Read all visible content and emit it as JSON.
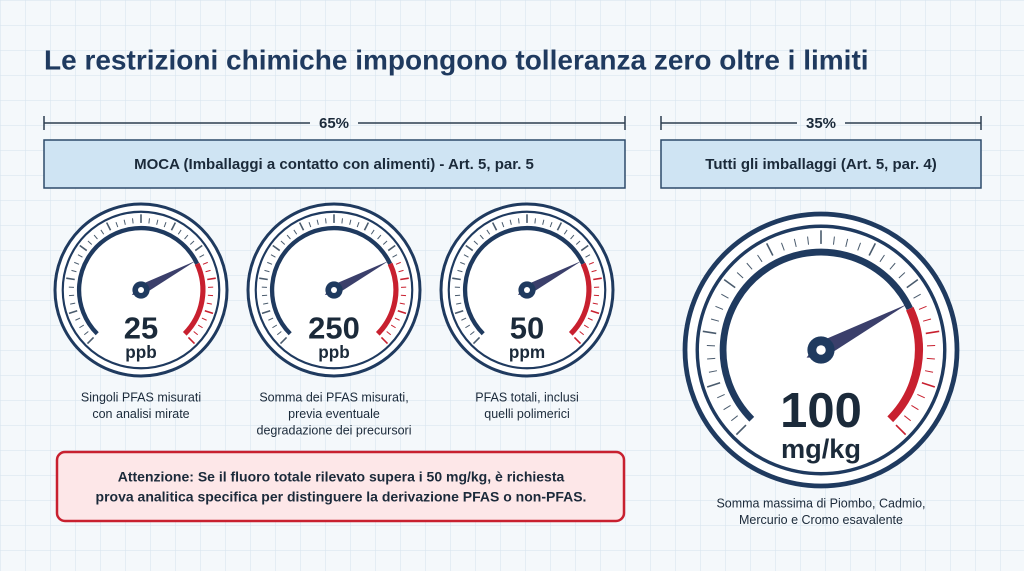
{
  "title": "Le restrizioni chimiche impongono tolleranza zero oltre i limiti",
  "sections": [
    {
      "share": "65%",
      "header": "MOCA (Imballaggi a contatto con alimenti) - Art. 5, par. 5",
      "gauges": [
        {
          "value": "25",
          "unit": "ppb",
          "caption": [
            "Singoli PFAS misurati",
            "con analisi mirate"
          ]
        },
        {
          "value": "250",
          "unit": "ppb",
          "caption": [
            "Somma dei PFAS misurati,",
            "previa eventuale",
            "degradazione dei precursori"
          ]
        },
        {
          "value": "50",
          "unit": "ppm",
          "caption": [
            "PFAS totali, inclusi",
            "quelli polimerici"
          ]
        }
      ]
    },
    {
      "share": "35%",
      "header": "Tutti gli imballaggi (Art. 5, par. 4)",
      "gauges": [
        {
          "value": "100",
          "unit": "mg/kg",
          "caption": [
            "Somma massima di Piombo, Cadmio,",
            "Mercurio e Cromo esavalente"
          ]
        }
      ]
    }
  ],
  "warning": [
    "Attenzione: Se il fluoro totale rilevato supera i 50 mg/kg, è richiesta",
    "prova analitica specifica per distinguere la derivazione PFAS o non-PFAS."
  ]
}
